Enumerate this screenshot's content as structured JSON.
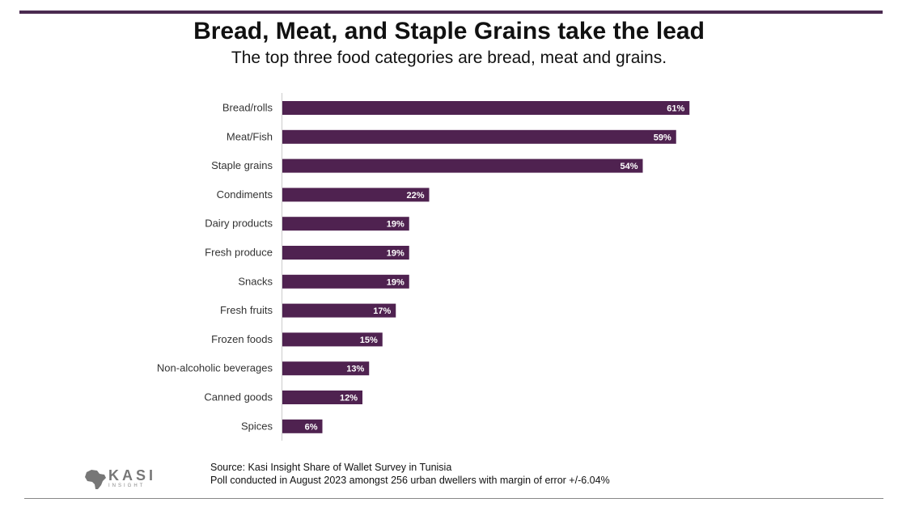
{
  "header": {
    "title": "Bread, Meat, and Staple Grains take the lead",
    "subtitle": "The top three food categories are bread, meat and grains."
  },
  "chart_data": {
    "type": "bar",
    "orientation": "horizontal",
    "categories": [
      "Bread/rolls",
      "Meat/Fish",
      "Staple grains",
      "Condiments",
      "Dairy products",
      "Fresh produce",
      "Snacks",
      "Fresh fruits",
      "Frozen foods",
      "Non-alcoholic beverages",
      "Canned goods",
      "Spices"
    ],
    "values": [
      61,
      59,
      54,
      22,
      19,
      19,
      19,
      17,
      15,
      13,
      12,
      6
    ],
    "value_labels": [
      "61%",
      "59%",
      "54%",
      "22%",
      "19%",
      "19%",
      "19%",
      "17%",
      "15%",
      "13%",
      "12%",
      "6%"
    ],
    "title": "Bread, Meat, and Staple Grains take the lead",
    "xlabel": "",
    "ylabel": "",
    "xlim": [
      0,
      100
    ],
    "bar_color": "#4f2250"
  },
  "footer": {
    "source_line1": "Source: Kasi Insight Share of Wallet Survey in Tunisia",
    "source_line2": "Poll conducted in August 2023 amongst 256 urban dwellers with margin of error +/-6.04%",
    "logo_text": "KASI",
    "logo_subtext": "INSIGHT"
  }
}
